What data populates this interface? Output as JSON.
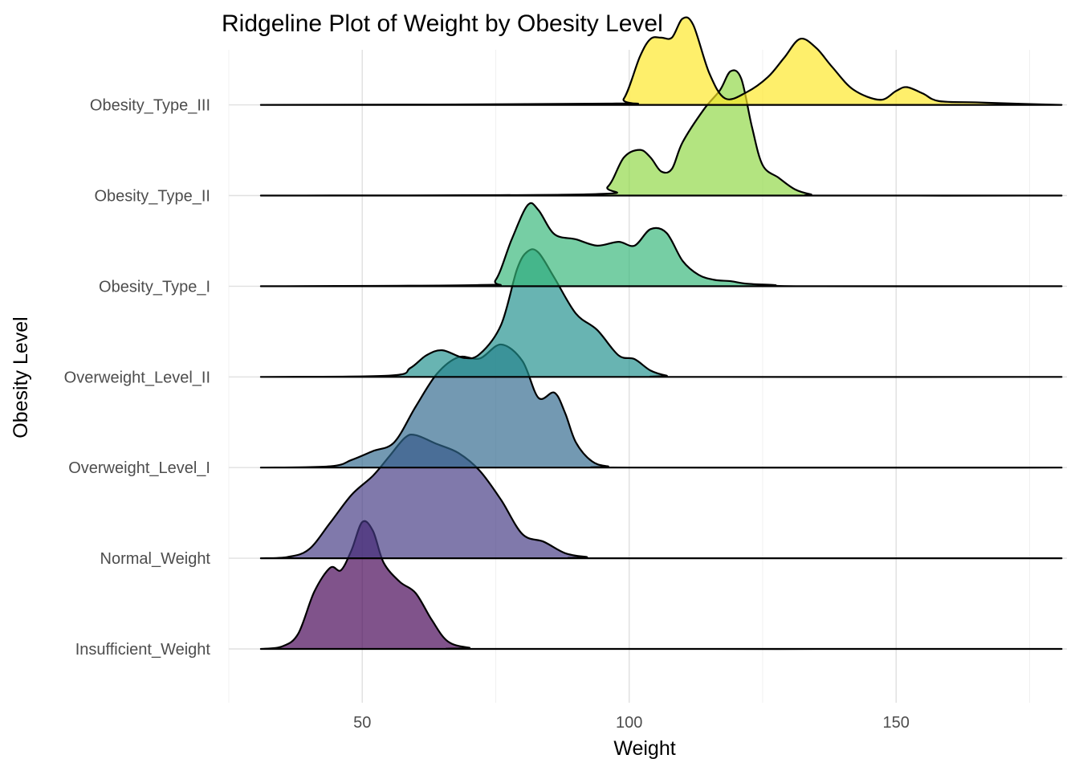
{
  "chart_data": {
    "type": "ridgeline",
    "title": "Ridgeline Plot of Weight by Obesity Level",
    "xlabel": "Weight",
    "ylabel": "Obesity Level",
    "xlim": [
      25,
      182
    ],
    "xticks": [
      50,
      100,
      150
    ],
    "grid": true,
    "legend": "none",
    "series": [
      {
        "name": "Insufficient_Weight",
        "color": "#440154",
        "density": [
          [
            31,
            0
          ],
          [
            35,
            0.02
          ],
          [
            38,
            0.12
          ],
          [
            41,
            0.45
          ],
          [
            44,
            0.64
          ],
          [
            46,
            0.62
          ],
          [
            48,
            0.78
          ],
          [
            50,
            1.0
          ],
          [
            52,
            0.93
          ],
          [
            54,
            0.68
          ],
          [
            57,
            0.53
          ],
          [
            60,
            0.44
          ],
          [
            63,
            0.23
          ],
          [
            66,
            0.06
          ],
          [
            70,
            0.01
          ],
          [
            75,
            0
          ],
          [
            181,
            0
          ]
        ]
      },
      {
        "name": "Normal_Weight",
        "color": "#443a83",
        "density": [
          [
            31,
            0
          ],
          [
            36,
            0.01
          ],
          [
            40,
            0.07
          ],
          [
            44,
            0.28
          ],
          [
            48,
            0.5
          ],
          [
            52,
            0.65
          ],
          [
            55,
            0.8
          ],
          [
            58,
            0.95
          ],
          [
            60,
            0.97
          ],
          [
            64,
            0.9
          ],
          [
            68,
            0.83
          ],
          [
            72,
            0.69
          ],
          [
            76,
            0.46
          ],
          [
            80,
            0.19
          ],
          [
            84,
            0.13
          ],
          [
            88,
            0.04
          ],
          [
            92,
            0.01
          ],
          [
            96,
            0
          ],
          [
            181,
            0
          ]
        ]
      },
      {
        "name": "Overweight_Level_I",
        "color": "#31688e",
        "density": [
          [
            31,
            0
          ],
          [
            44,
            0.01
          ],
          [
            48,
            0.06
          ],
          [
            52,
            0.13
          ],
          [
            56,
            0.2
          ],
          [
            60,
            0.48
          ],
          [
            64,
            0.74
          ],
          [
            68,
            0.87
          ],
          [
            72,
            0.86
          ],
          [
            76,
            0.97
          ],
          [
            80,
            0.84
          ],
          [
            83,
            0.55
          ],
          [
            86,
            0.59
          ],
          [
            88,
            0.43
          ],
          [
            90,
            0.2
          ],
          [
            93,
            0.05
          ],
          [
            96,
            0.01
          ],
          [
            100,
            0
          ],
          [
            181,
            0
          ]
        ]
      },
      {
        "name": "Overweight_Level_II",
        "color": "#21908d",
        "density": [
          [
            31,
            0
          ],
          [
            55,
            0.01
          ],
          [
            59,
            0.07
          ],
          [
            62,
            0.17
          ],
          [
            65,
            0.21
          ],
          [
            69,
            0.15
          ],
          [
            72,
            0.18
          ],
          [
            76,
            0.41
          ],
          [
            79,
            0.85
          ],
          [
            81,
            0.99
          ],
          [
            83,
            0.98
          ],
          [
            86,
            0.78
          ],
          [
            90,
            0.5
          ],
          [
            94,
            0.37
          ],
          [
            98,
            0.17
          ],
          [
            101,
            0.14
          ],
          [
            104,
            0.05
          ],
          [
            107,
            0.01
          ],
          [
            110,
            0
          ],
          [
            181,
            0
          ]
        ]
      },
      {
        "name": "Obesity_Type_I",
        "color": "#35b779",
        "density": [
          [
            31,
            0
          ],
          [
            72,
            0.01
          ],
          [
            75,
            0.05
          ],
          [
            78,
            0.37
          ],
          [
            81,
            0.64
          ],
          [
            83,
            0.6
          ],
          [
            86,
            0.41
          ],
          [
            90,
            0.37
          ],
          [
            94,
            0.32
          ],
          [
            98,
            0.35
          ],
          [
            101,
            0.32
          ],
          [
            104,
            0.45
          ],
          [
            107,
            0.42
          ],
          [
            110,
            0.2
          ],
          [
            113,
            0.09
          ],
          [
            116,
            0.05
          ],
          [
            119,
            0.04
          ],
          [
            122,
            0.02
          ],
          [
            127,
            0.01
          ],
          [
            133,
            0
          ],
          [
            181,
            0
          ]
        ]
      },
      {
        "name": "Obesity_Type_II",
        "color": "#8fd744",
        "density": [
          [
            31,
            0
          ],
          [
            92,
            0.01
          ],
          [
            96,
            0.07
          ],
          [
            99,
            0.3
          ],
          [
            102,
            0.36
          ],
          [
            104,
            0.3
          ],
          [
            106,
            0.19
          ],
          [
            108,
            0.21
          ],
          [
            110,
            0.42
          ],
          [
            114,
            0.68
          ],
          [
            117,
            0.83
          ],
          [
            119,
            0.98
          ],
          [
            121,
            0.92
          ],
          [
            123,
            0.54
          ],
          [
            125,
            0.24
          ],
          [
            128,
            0.14
          ],
          [
            131,
            0.05
          ],
          [
            134,
            0.01
          ],
          [
            137,
            0
          ],
          [
            181,
            0
          ]
        ]
      },
      {
        "name": "Obesity_Type_III",
        "color": "#fde725",
        "density": [
          [
            31,
            0
          ],
          [
            96,
            0.01
          ],
          [
            99,
            0.05
          ],
          [
            102,
            0.38
          ],
          [
            104,
            0.52
          ],
          [
            106,
            0.53
          ],
          [
            108,
            0.53
          ],
          [
            110,
            0.68
          ],
          [
            112,
            0.63
          ],
          [
            115,
            0.25
          ],
          [
            118,
            0.05
          ],
          [
            122,
            0.1
          ],
          [
            126,
            0.22
          ],
          [
            129,
            0.37
          ],
          [
            132,
            0.52
          ],
          [
            135,
            0.45
          ],
          [
            138,
            0.3
          ],
          [
            142,
            0.12
          ],
          [
            147,
            0.04
          ],
          [
            150,
            0.11
          ],
          [
            152,
            0.14
          ],
          [
            155,
            0.09
          ],
          [
            158,
            0.03
          ],
          [
            165,
            0.02
          ],
          [
            172,
            0.01
          ],
          [
            181,
            0
          ]
        ]
      }
    ]
  }
}
